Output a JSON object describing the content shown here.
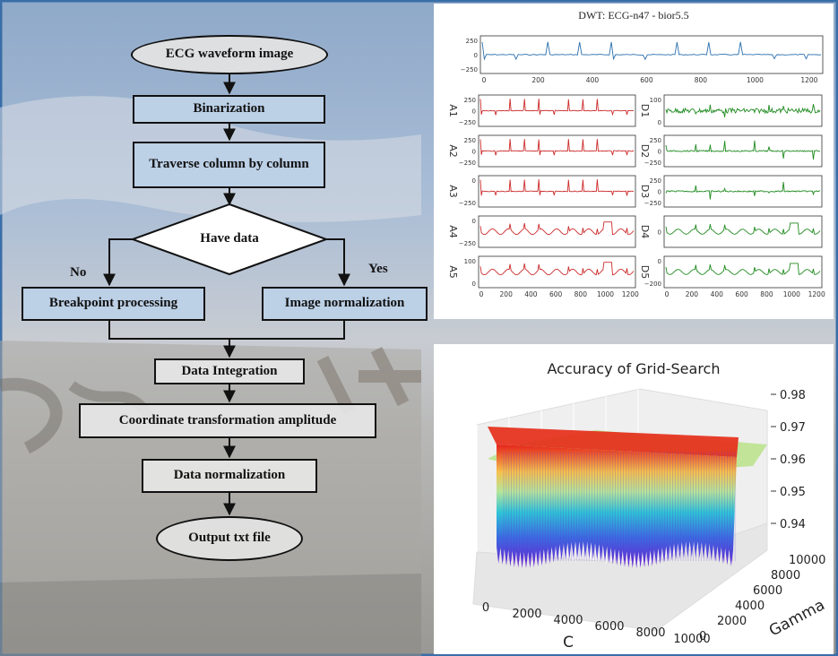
{
  "flowchart": {
    "start": "ECG waveform image",
    "step1": "Binarization",
    "step2": "Traverse column by column",
    "decision": "Have data",
    "no_label": "No",
    "yes_label": "Yes",
    "no_branch": "Breakpoint processing",
    "yes_branch": "Image normalization",
    "step3": "Data Integration",
    "step4": "Coordinate transformation amplitude",
    "step5": "Data normalization",
    "end": "Output txt file"
  },
  "chart_data": [
    {
      "type": "line",
      "title": "DWT: ECG-n47 - bior5.5",
      "top_signal": {
        "yticks": [
          "250",
          "0",
          "−250"
        ],
        "xticks": [
          "0",
          "200",
          "400",
          "600",
          "800",
          "1000",
          "1200"
        ]
      },
      "approximations": [
        {
          "name": "A1",
          "yticks": [
            "250",
            "0",
            "−250"
          ],
          "color": "#cc2b2b"
        },
        {
          "name": "A2",
          "yticks": [
            "250",
            "0",
            "−250"
          ],
          "color": "#cc2b2b"
        },
        {
          "name": "A3",
          "yticks": [
            "0",
            "−250"
          ],
          "color": "#cc2b2b"
        },
        {
          "name": "A4",
          "yticks": [
            "0",
            "−250"
          ],
          "color": "#cc2b2b"
        },
        {
          "name": "A5",
          "yticks": [
            "100",
            "0"
          ],
          "color": "#cc2b2b"
        }
      ],
      "details": [
        {
          "name": "D1",
          "yticks": [
            "100",
            "0"
          ],
          "color": "#1f8a1f"
        },
        {
          "name": "D2",
          "yticks": [
            "250",
            "0",
            "−250"
          ],
          "color": "#1f8a1f"
        },
        {
          "name": "D3",
          "yticks": [
            "250",
            "0",
            "−250"
          ],
          "color": "#1f8a1f"
        },
        {
          "name": "D4",
          "yticks": [
            "0"
          ],
          "color": "#1f8a1f"
        },
        {
          "name": "D5",
          "yticks": [
            "0",
            "−200"
          ],
          "color": "#1f8a1f"
        }
      ],
      "bottom_xticks": [
        "0",
        "200",
        "400",
        "600",
        "800",
        "1000",
        "1200"
      ],
      "top_color": "#2b6fae"
    },
    {
      "type": "surface3d",
      "title": "Accuracy of Grid-Search",
      "xlabel": "C",
      "ylabel": "Gamma",
      "xticks": [
        "0",
        "2000",
        "4000",
        "6000",
        "8000",
        "10000"
      ],
      "yticks": [
        "0",
        "2000",
        "4000",
        "6000",
        "8000",
        "10000"
      ],
      "zticks": [
        "0.98",
        "0.97",
        "0.96",
        "0.95",
        "0.94"
      ],
      "zlim": [
        0.935,
        0.985
      ],
      "peak_value": 0.98,
      "min_value": 0.94
    }
  ]
}
